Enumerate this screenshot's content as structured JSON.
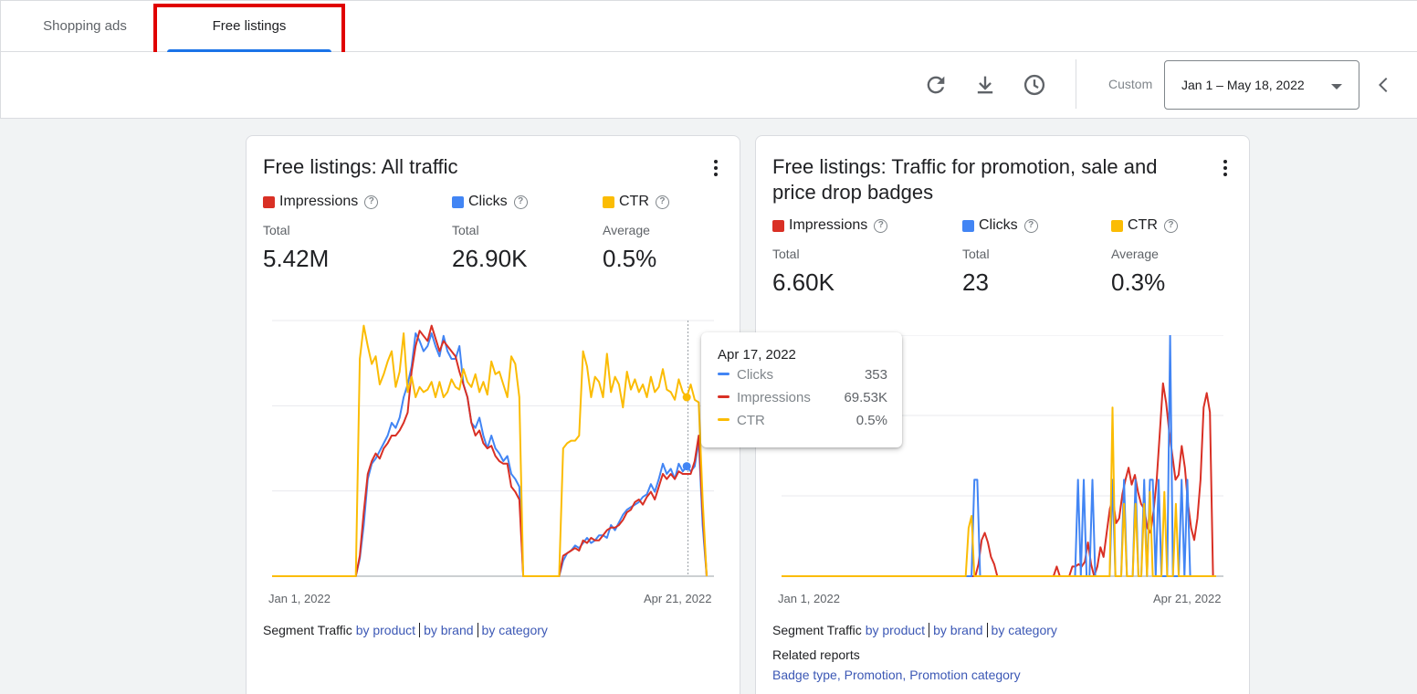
{
  "tabs": [
    {
      "label": "Shopping ads",
      "active": false
    },
    {
      "label": "Free listings",
      "active": true
    }
  ],
  "toolbar": {
    "icons": [
      "refresh-icon",
      "download-icon",
      "history-icon"
    ],
    "custom_label": "Custom",
    "date_range": "Jan 1 – May 18, 2022",
    "collapse_icon": "chevron-left-icon"
  },
  "colors": {
    "impressions": "#d93025",
    "clicks": "#4285f4",
    "ctr": "#fbbc04",
    "link": "#3c58b5",
    "tab_underline": "#1a73e8",
    "highlight": "#e00000"
  },
  "cards": [
    {
      "title": "Free listings: All traffic",
      "metrics": [
        {
          "name": "Impressions",
          "sub": "Total",
          "value": "5.42M"
        },
        {
          "name": "Clicks",
          "sub": "Total",
          "value": "26.90K"
        },
        {
          "name": "CTR",
          "sub": "Average",
          "value": "0.5%"
        }
      ],
      "x_start": "Jan 1, 2022",
      "x_end": "Apr 21, 2022",
      "segment": {
        "label": "Segment Traffic",
        "links": [
          "by product",
          "by brand",
          "by category"
        ]
      }
    },
    {
      "title": "Free listings: Traffic for promotion, sale and price drop badges",
      "metrics": [
        {
          "name": "Impressions",
          "sub": "Total",
          "value": "6.60K"
        },
        {
          "name": "Clicks",
          "sub": "Total",
          "value": "23"
        },
        {
          "name": "CTR",
          "sub": "Average",
          "value": "0.3%"
        }
      ],
      "x_start": "Jan 1, 2022",
      "x_end": "Apr 21, 2022",
      "segment": {
        "label": "Segment Traffic",
        "links": [
          "by product",
          "by brand",
          "by category"
        ]
      },
      "related": {
        "title": "Related reports",
        "links": "Badge type, Promotion, Promotion category"
      }
    }
  ],
  "tooltip": {
    "date": "Apr 17, 2022",
    "rows": [
      {
        "name": "Clicks",
        "value": "353"
      },
      {
        "name": "Impressions",
        "value": "69.53K"
      },
      {
        "name": "CTR",
        "value": "0.5%"
      }
    ]
  },
  "chart_data": [
    {
      "type": "line",
      "x_range": [
        "Jan 1, 2022",
        "Apr 21, 2022"
      ],
      "grid": true,
      "series": [
        {
          "name": "Impressions",
          "color": "#d93025",
          "values": [
            0,
            0,
            0,
            0,
            0,
            0,
            0,
            0,
            0,
            0,
            0,
            0,
            0,
            0,
            0,
            0,
            0,
            0,
            0,
            0,
            0,
            0,
            8,
            25,
            40,
            45,
            48,
            46,
            50,
            52,
            55,
            55,
            57,
            60,
            64,
            80,
            90,
            96,
            94,
            92,
            98,
            93,
            88,
            92,
            90,
            88,
            86,
            80,
            75,
            70,
            60,
            55,
            57,
            52,
            50,
            51,
            47,
            45,
            44,
            44,
            35,
            33,
            30,
            0,
            0,
            0,
            0,
            0,
            0,
            0,
            0,
            0,
            0,
            8,
            9,
            10,
            11,
            10,
            14,
            13,
            15,
            14,
            14,
            16,
            18,
            19,
            19,
            20,
            22,
            25,
            26,
            29,
            30,
            28,
            31,
            33,
            30,
            35,
            40,
            38,
            40,
            38,
            41,
            40,
            40,
            40,
            45,
            55,
            25,
            0
          ]
        },
        {
          "name": "Clicks",
          "color": "#4285f4",
          "values": [
            0,
            0,
            0,
            0,
            0,
            0,
            0,
            0,
            0,
            0,
            0,
            0,
            0,
            0,
            0,
            0,
            0,
            0,
            0,
            0,
            0,
            0,
            7,
            20,
            38,
            44,
            46,
            49,
            52,
            55,
            60,
            58,
            62,
            70,
            75,
            82,
            95,
            92,
            88,
            90,
            95,
            90,
            86,
            94,
            88,
            85,
            85,
            90,
            75,
            70,
            60,
            58,
            62,
            55,
            50,
            55,
            50,
            48,
            45,
            47,
            40,
            38,
            35,
            0,
            0,
            0,
            0,
            0,
            0,
            0,
            0,
            0,
            0,
            6,
            9,
            10,
            12,
            11,
            13,
            15,
            13,
            14,
            16,
            16,
            15,
            20,
            18,
            21,
            24,
            26,
            27,
            28,
            29,
            31,
            32,
            36,
            33,
            38,
            44,
            40,
            42,
            38,
            44,
            41,
            43,
            41,
            43,
            53,
            20,
            0
          ]
        },
        {
          "name": "CTR",
          "color": "#fbbc04",
          "values": [
            0,
            0,
            0,
            0,
            0,
            0,
            0,
            0,
            0,
            0,
            0,
            0,
            0,
            0,
            0,
            0,
            0,
            0,
            0,
            0,
            0,
            0,
            85,
            98,
            90,
            83,
            86,
            75,
            79,
            84,
            88,
            74,
            80,
            95,
            72,
            78,
            70,
            74,
            72,
            73,
            76,
            70,
            76,
            70,
            72,
            77,
            74,
            73,
            81,
            76,
            74,
            79,
            72,
            76,
            71,
            84,
            79,
            80,
            75,
            70,
            86,
            83,
            70,
            0,
            0,
            0,
            0,
            0,
            0,
            0,
            0,
            0,
            0,
            50,
            52,
            53,
            53,
            55,
            88,
            82,
            70,
            78,
            76,
            70,
            87,
            72,
            78,
            75,
            66,
            80,
            73,
            77,
            72,
            75,
            70,
            78,
            72,
            74,
            81,
            73,
            72,
            69,
            77,
            72,
            70,
            75,
            69,
            68,
            30,
            0
          ]
        }
      ]
    },
    {
      "type": "line",
      "x_range": [
        "Jan 1, 2022",
        "Apr 21, 2022"
      ],
      "grid": true,
      "series": [
        {
          "name": "Impressions",
          "color": "#d93025",
          "values": [
            0,
            0,
            0,
            0,
            0,
            0,
            0,
            0,
            0,
            0,
            0,
            0,
            0,
            0,
            0,
            0,
            0,
            0,
            0,
            0,
            0,
            0,
            0,
            0,
            0,
            0,
            0,
            0,
            0,
            0,
            0,
            0,
            0,
            0,
            0,
            0,
            0,
            0,
            0,
            0,
            0,
            0,
            0,
            0,
            0,
            0,
            0,
            0,
            0,
            0,
            0,
            0,
            0,
            0,
            0,
            0,
            0,
            0,
            0,
            0,
            0,
            0,
            0,
            5,
            15,
            18,
            14,
            8,
            5,
            0,
            0,
            0,
            0,
            0,
            0,
            0,
            0,
            0,
            0,
            0,
            0,
            0,
            0,
            0,
            0,
            0,
            0,
            0,
            4,
            0,
            0,
            0,
            0,
            4,
            4,
            5,
            4,
            6,
            14,
            5,
            0,
            4,
            12,
            8,
            18,
            28,
            32,
            22,
            24,
            34,
            40,
            45,
            38,
            42,
            35,
            30,
            28,
            20,
            18,
            27,
            40,
            60,
            80,
            72,
            60,
            50,
            40,
            42,
            54,
            45,
            30,
            20,
            15,
            24,
            40,
            70,
            76,
            68,
            0,
            0
          ]
        },
        {
          "name": "Clicks",
          "color": "#4285f4",
          "values": [
            0,
            0,
            0,
            0,
            0,
            0,
            0,
            0,
            0,
            0,
            0,
            0,
            0,
            0,
            0,
            0,
            0,
            0,
            0,
            0,
            0,
            0,
            0,
            0,
            0,
            0,
            0,
            0,
            0,
            0,
            0,
            0,
            0,
            0,
            0,
            0,
            0,
            0,
            0,
            0,
            0,
            0,
            0,
            0,
            0,
            0,
            0,
            0,
            0,
            0,
            0,
            0,
            0,
            0,
            0,
            0,
            0,
            0,
            0,
            0,
            0,
            0,
            0,
            0,
            0,
            0,
            0,
            40,
            40,
            0,
            0,
            0,
            0,
            0,
            0,
            0,
            0,
            0,
            0,
            0,
            0,
            0,
            0,
            0,
            0,
            0,
            0,
            0,
            0,
            0,
            0,
            0,
            0,
            0,
            0,
            0,
            0,
            0,
            0,
            0,
            0,
            0,
            0,
            40,
            0,
            40,
            0,
            0,
            40,
            0,
            0,
            0,
            0,
            0,
            0,
            40,
            0,
            0,
            0,
            40,
            0,
            0,
            0,
            40,
            0,
            0,
            40,
            0,
            40,
            40,
            0,
            40,
            0,
            0,
            0,
            100,
            0,
            0,
            0,
            40,
            0,
            40,
            0,
            0,
            0,
            0,
            0,
            0,
            0,
            0,
            0,
            0
          ]
        },
        {
          "name": "CTR",
          "color": "#fbbc04",
          "values": [
            0,
            0,
            0,
            0,
            0,
            0,
            0,
            0,
            0,
            0,
            0,
            0,
            0,
            0,
            0,
            0,
            0,
            0,
            0,
            0,
            0,
            0,
            0,
            0,
            0,
            0,
            0,
            0,
            0,
            0,
            0,
            0,
            0,
            0,
            0,
            0,
            0,
            0,
            0,
            0,
            0,
            0,
            0,
            0,
            0,
            0,
            0,
            0,
            0,
            0,
            0,
            0,
            0,
            0,
            0,
            0,
            0,
            0,
            0,
            0,
            0,
            0,
            0,
            0,
            0,
            20,
            25,
            0,
            0,
            0,
            0,
            0,
            0,
            0,
            0,
            0,
            0,
            0,
            0,
            0,
            0,
            0,
            0,
            0,
            0,
            0,
            0,
            0,
            0,
            0,
            0,
            0,
            0,
            0,
            0,
            0,
            0,
            0,
            0,
            0,
            0,
            0,
            0,
            0,
            0,
            0,
            0,
            0,
            0,
            0,
            0,
            0,
            0,
            0,
            0,
            70,
            0,
            0,
            0,
            30,
            0,
            0,
            0,
            30,
            0,
            0,
            30,
            0,
            35,
            0,
            0,
            0,
            0,
            35,
            0,
            0,
            0,
            30,
            0,
            0,
            0,
            0,
            0,
            0,
            0,
            0,
            0,
            0,
            0,
            0,
            0,
            0
          ]
        }
      ]
    }
  ]
}
